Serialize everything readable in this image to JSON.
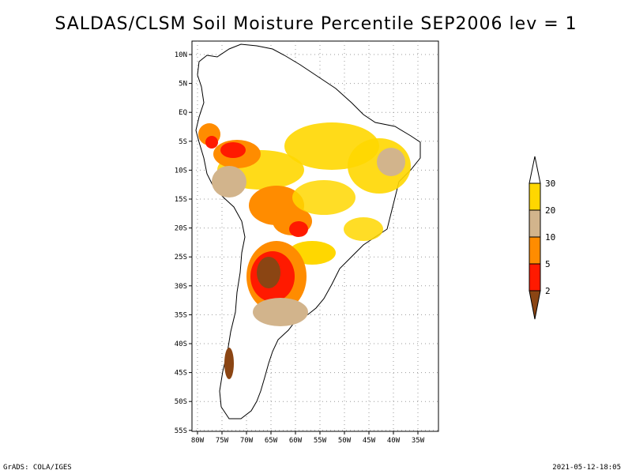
{
  "title": "SALDAS/CLSM Soil Moisture Percentile SEP2006 lev = 1",
  "map": {
    "lat_ticks": [
      "10N",
      "5N",
      "EQ",
      "5S",
      "10S",
      "15S",
      "20S",
      "25S",
      "30S",
      "35S",
      "40S",
      "45S",
      "50S",
      "55S"
    ],
    "lon_ticks": [
      "80W",
      "75W",
      "70W",
      "65W",
      "60W",
      "55W",
      "50W",
      "45W",
      "40W",
      "35W"
    ]
  },
  "colorbar": {
    "levels": [
      "2",
      "5",
      "10",
      "20",
      "30"
    ],
    "colors": [
      "#8B4513",
      "#ff1a00",
      "#ff8c00",
      "#d2b48c",
      "#ffd700",
      "#ffffff"
    ]
  },
  "footer": {
    "left": "GrADS: COLA/IGES",
    "right": "2021-05-12-18:05"
  }
}
